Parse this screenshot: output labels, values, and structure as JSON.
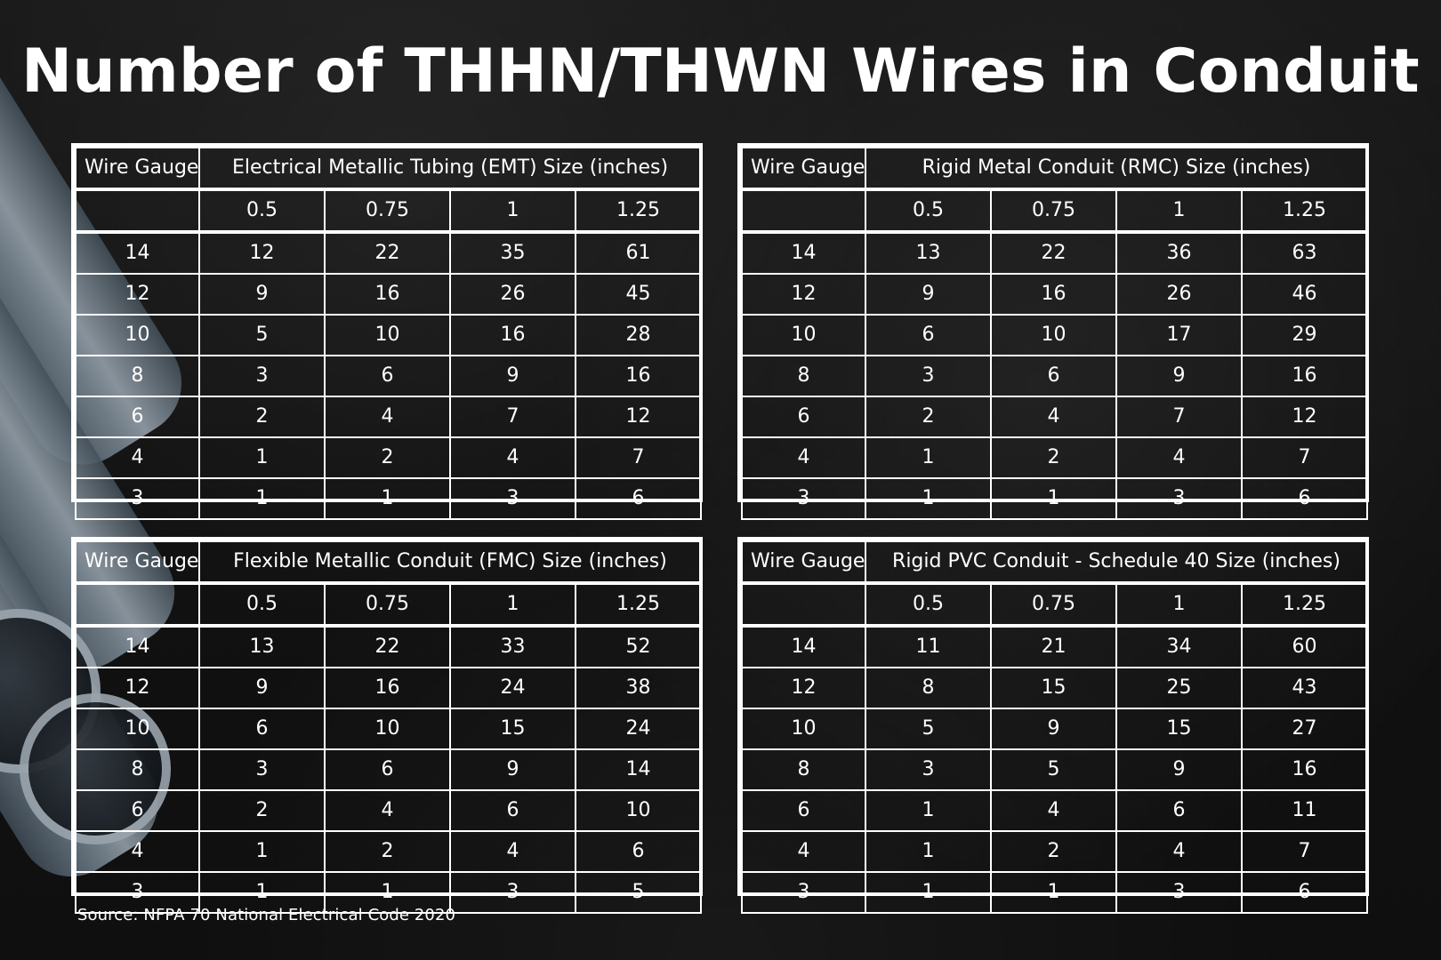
{
  "title": "Number of THHN/THWN Wires in Conduit",
  "footer": {
    "source": "Source: NFPA 70 National Electrical Code 2020"
  },
  "tables": [
    {
      "gauge_header": "Wire Gauge",
      "size_header": "Electrical Metallic Tubing (EMT) Size (inches)",
      "sizes": [
        "0.5",
        "0.75",
        "1",
        "1.25"
      ],
      "rows": [
        {
          "gauge": "14",
          "values": [
            "12",
            "22",
            "35",
            "61"
          ]
        },
        {
          "gauge": "12",
          "values": [
            "9",
            "16",
            "26",
            "45"
          ]
        },
        {
          "gauge": "10",
          "values": [
            "5",
            "10",
            "16",
            "28"
          ]
        },
        {
          "gauge": "8",
          "values": [
            "3",
            "6",
            "9",
            "16"
          ]
        },
        {
          "gauge": "6",
          "values": [
            "2",
            "4",
            "7",
            "12"
          ]
        },
        {
          "gauge": "4",
          "values": [
            "1",
            "2",
            "4",
            "7"
          ]
        },
        {
          "gauge": "3",
          "values": [
            "1",
            "1",
            "3",
            "6"
          ]
        }
      ]
    },
    {
      "gauge_header": "Wire Gauge",
      "size_header": "Rigid Metal Conduit (RMC) Size (inches)",
      "sizes": [
        "0.5",
        "0.75",
        "1",
        "1.25"
      ],
      "rows": [
        {
          "gauge": "14",
          "values": [
            "13",
            "22",
            "36",
            "63"
          ]
        },
        {
          "gauge": "12",
          "values": [
            "9",
            "16",
            "26",
            "46"
          ]
        },
        {
          "gauge": "10",
          "values": [
            "6",
            "10",
            "17",
            "29"
          ]
        },
        {
          "gauge": "8",
          "values": [
            "3",
            "6",
            "9",
            "16"
          ]
        },
        {
          "gauge": "6",
          "values": [
            "2",
            "4",
            "7",
            "12"
          ]
        },
        {
          "gauge": "4",
          "values": [
            "1",
            "2",
            "4",
            "7"
          ]
        },
        {
          "gauge": "3",
          "values": [
            "1",
            "1",
            "3",
            "6"
          ]
        }
      ]
    },
    {
      "gauge_header": "Wire Gauge",
      "size_header": "Flexible Metallic Conduit (FMC) Size (inches)",
      "sizes": [
        "0.5",
        "0.75",
        "1",
        "1.25"
      ],
      "rows": [
        {
          "gauge": "14",
          "values": [
            "13",
            "22",
            "33",
            "52"
          ]
        },
        {
          "gauge": "12",
          "values": [
            "9",
            "16",
            "24",
            "38"
          ]
        },
        {
          "gauge": "10",
          "values": [
            "6",
            "10",
            "15",
            "24"
          ]
        },
        {
          "gauge": "8",
          "values": [
            "3",
            "6",
            "9",
            "14"
          ]
        },
        {
          "gauge": "6",
          "values": [
            "2",
            "4",
            "6",
            "10"
          ]
        },
        {
          "gauge": "4",
          "values": [
            "1",
            "2",
            "4",
            "6"
          ]
        },
        {
          "gauge": "3",
          "values": [
            "1",
            "1",
            "3",
            "5"
          ]
        }
      ]
    },
    {
      "gauge_header": "Wire Gauge",
      "size_header": "Rigid PVC Conduit - Schedule 40 Size (inches)",
      "sizes": [
        "0.5",
        "0.75",
        "1",
        "1.25"
      ],
      "rows": [
        {
          "gauge": "14",
          "values": [
            "11",
            "21",
            "34",
            "60"
          ]
        },
        {
          "gauge": "12",
          "values": [
            "8",
            "15",
            "25",
            "43"
          ]
        },
        {
          "gauge": "10",
          "values": [
            "5",
            "9",
            "15",
            "27"
          ]
        },
        {
          "gauge": "8",
          "values": [
            "3",
            "5",
            "9",
            "16"
          ]
        },
        {
          "gauge": "6",
          "values": [
            "1",
            "4",
            "6",
            "11"
          ]
        },
        {
          "gauge": "4",
          "values": [
            "1",
            "2",
            "4",
            "7"
          ]
        },
        {
          "gauge": "3",
          "values": [
            "1",
            "1",
            "3",
            "6"
          ]
        }
      ]
    }
  ]
}
